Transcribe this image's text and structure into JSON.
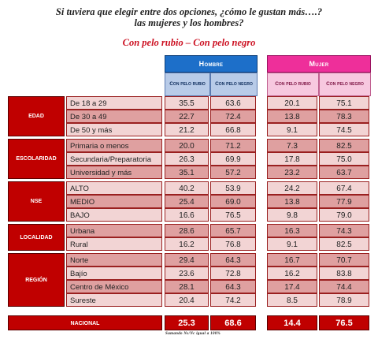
{
  "question": {
    "line1": "Si tuviera que elegir entre dos opciones, ¿cómo le gustan más….?",
    "line2": "las mujeres y los hombres?"
  },
  "subtitle": "Con pelo rubio – Con pelo negro",
  "headers": {
    "hombre": "Hombre",
    "mujer": "Mujer",
    "rubio": "Con pelo rubio",
    "negro": "Con pelo negro"
  },
  "groups": [
    {
      "name": "Edad",
      "rows": [
        {
          "label": "De 18 a 29",
          "h_rubio": "35.5",
          "h_negro": "63.6",
          "m_rubio": "20.1",
          "m_negro": "75.1"
        },
        {
          "label": "De 30 a 49",
          "h_rubio": "22.7",
          "h_negro": "72.4",
          "m_rubio": "13.8",
          "m_negro": "78.3"
        },
        {
          "label": "De 50 y más",
          "h_rubio": "21.2",
          "h_negro": "66.8",
          "m_rubio": "9.1",
          "m_negro": "74.5"
        }
      ]
    },
    {
      "name": "Escolaridad",
      "rows": [
        {
          "label": "Primaria o menos",
          "h_rubio": "20.0",
          "h_negro": "71.2",
          "m_rubio": "7.3",
          "m_negro": "82.5"
        },
        {
          "label": "Secundaria/Preparatoria",
          "h_rubio": "26.3",
          "h_negro": "69.9",
          "m_rubio": "17.8",
          "m_negro": "75.0"
        },
        {
          "label": "Universidad y más",
          "h_rubio": "35.1",
          "h_negro": "57.2",
          "m_rubio": "23.2",
          "m_negro": "63.7"
        }
      ]
    },
    {
      "name": "NSE",
      "rows": [
        {
          "label": "ALTO",
          "h_rubio": "40.2",
          "h_negro": "53.9",
          "m_rubio": "24.2",
          "m_negro": "67.4"
        },
        {
          "label": "MEDIO",
          "h_rubio": "25.4",
          "h_negro": "69.0",
          "m_rubio": "13.8",
          "m_negro": "77.9"
        },
        {
          "label": "BAJO",
          "h_rubio": "16.6",
          "h_negro": "76.5",
          "m_rubio": "9.8",
          "m_negro": "79.0"
        }
      ]
    },
    {
      "name": "Localidad",
      "rows": [
        {
          "label": "Urbana",
          "h_rubio": "28.6",
          "h_negro": "65.7",
          "m_rubio": "16.3",
          "m_negro": "74.3"
        },
        {
          "label": "Rural",
          "h_rubio": "16.2",
          "h_negro": "76.8",
          "m_rubio": "9.1",
          "m_negro": "82.5"
        }
      ]
    },
    {
      "name": "Región",
      "rows": [
        {
          "label": "Norte",
          "h_rubio": "29.4",
          "h_negro": "64.3",
          "m_rubio": "16.7",
          "m_negro": "70.7"
        },
        {
          "label": "Bajío",
          "h_rubio": "23.6",
          "h_negro": "72.8",
          "m_rubio": "16.2",
          "m_negro": "83.8"
        },
        {
          "label": "Centro de México",
          "h_rubio": "28.1",
          "h_negro": "64.3",
          "m_rubio": "17.4",
          "m_negro": "74.4"
        },
        {
          "label": "Sureste",
          "h_rubio": "20.4",
          "h_negro": "74.2",
          "m_rubio": "8.5",
          "m_negro": "78.9"
        }
      ]
    }
  ],
  "nacional": {
    "label": "Nacional",
    "h_rubio": "25.3",
    "h_negro": "68.6",
    "m_rubio": "14.4",
    "m_negro": "76.5"
  },
  "footnote": "Sumando Ns/Nc igual a 100%"
}
